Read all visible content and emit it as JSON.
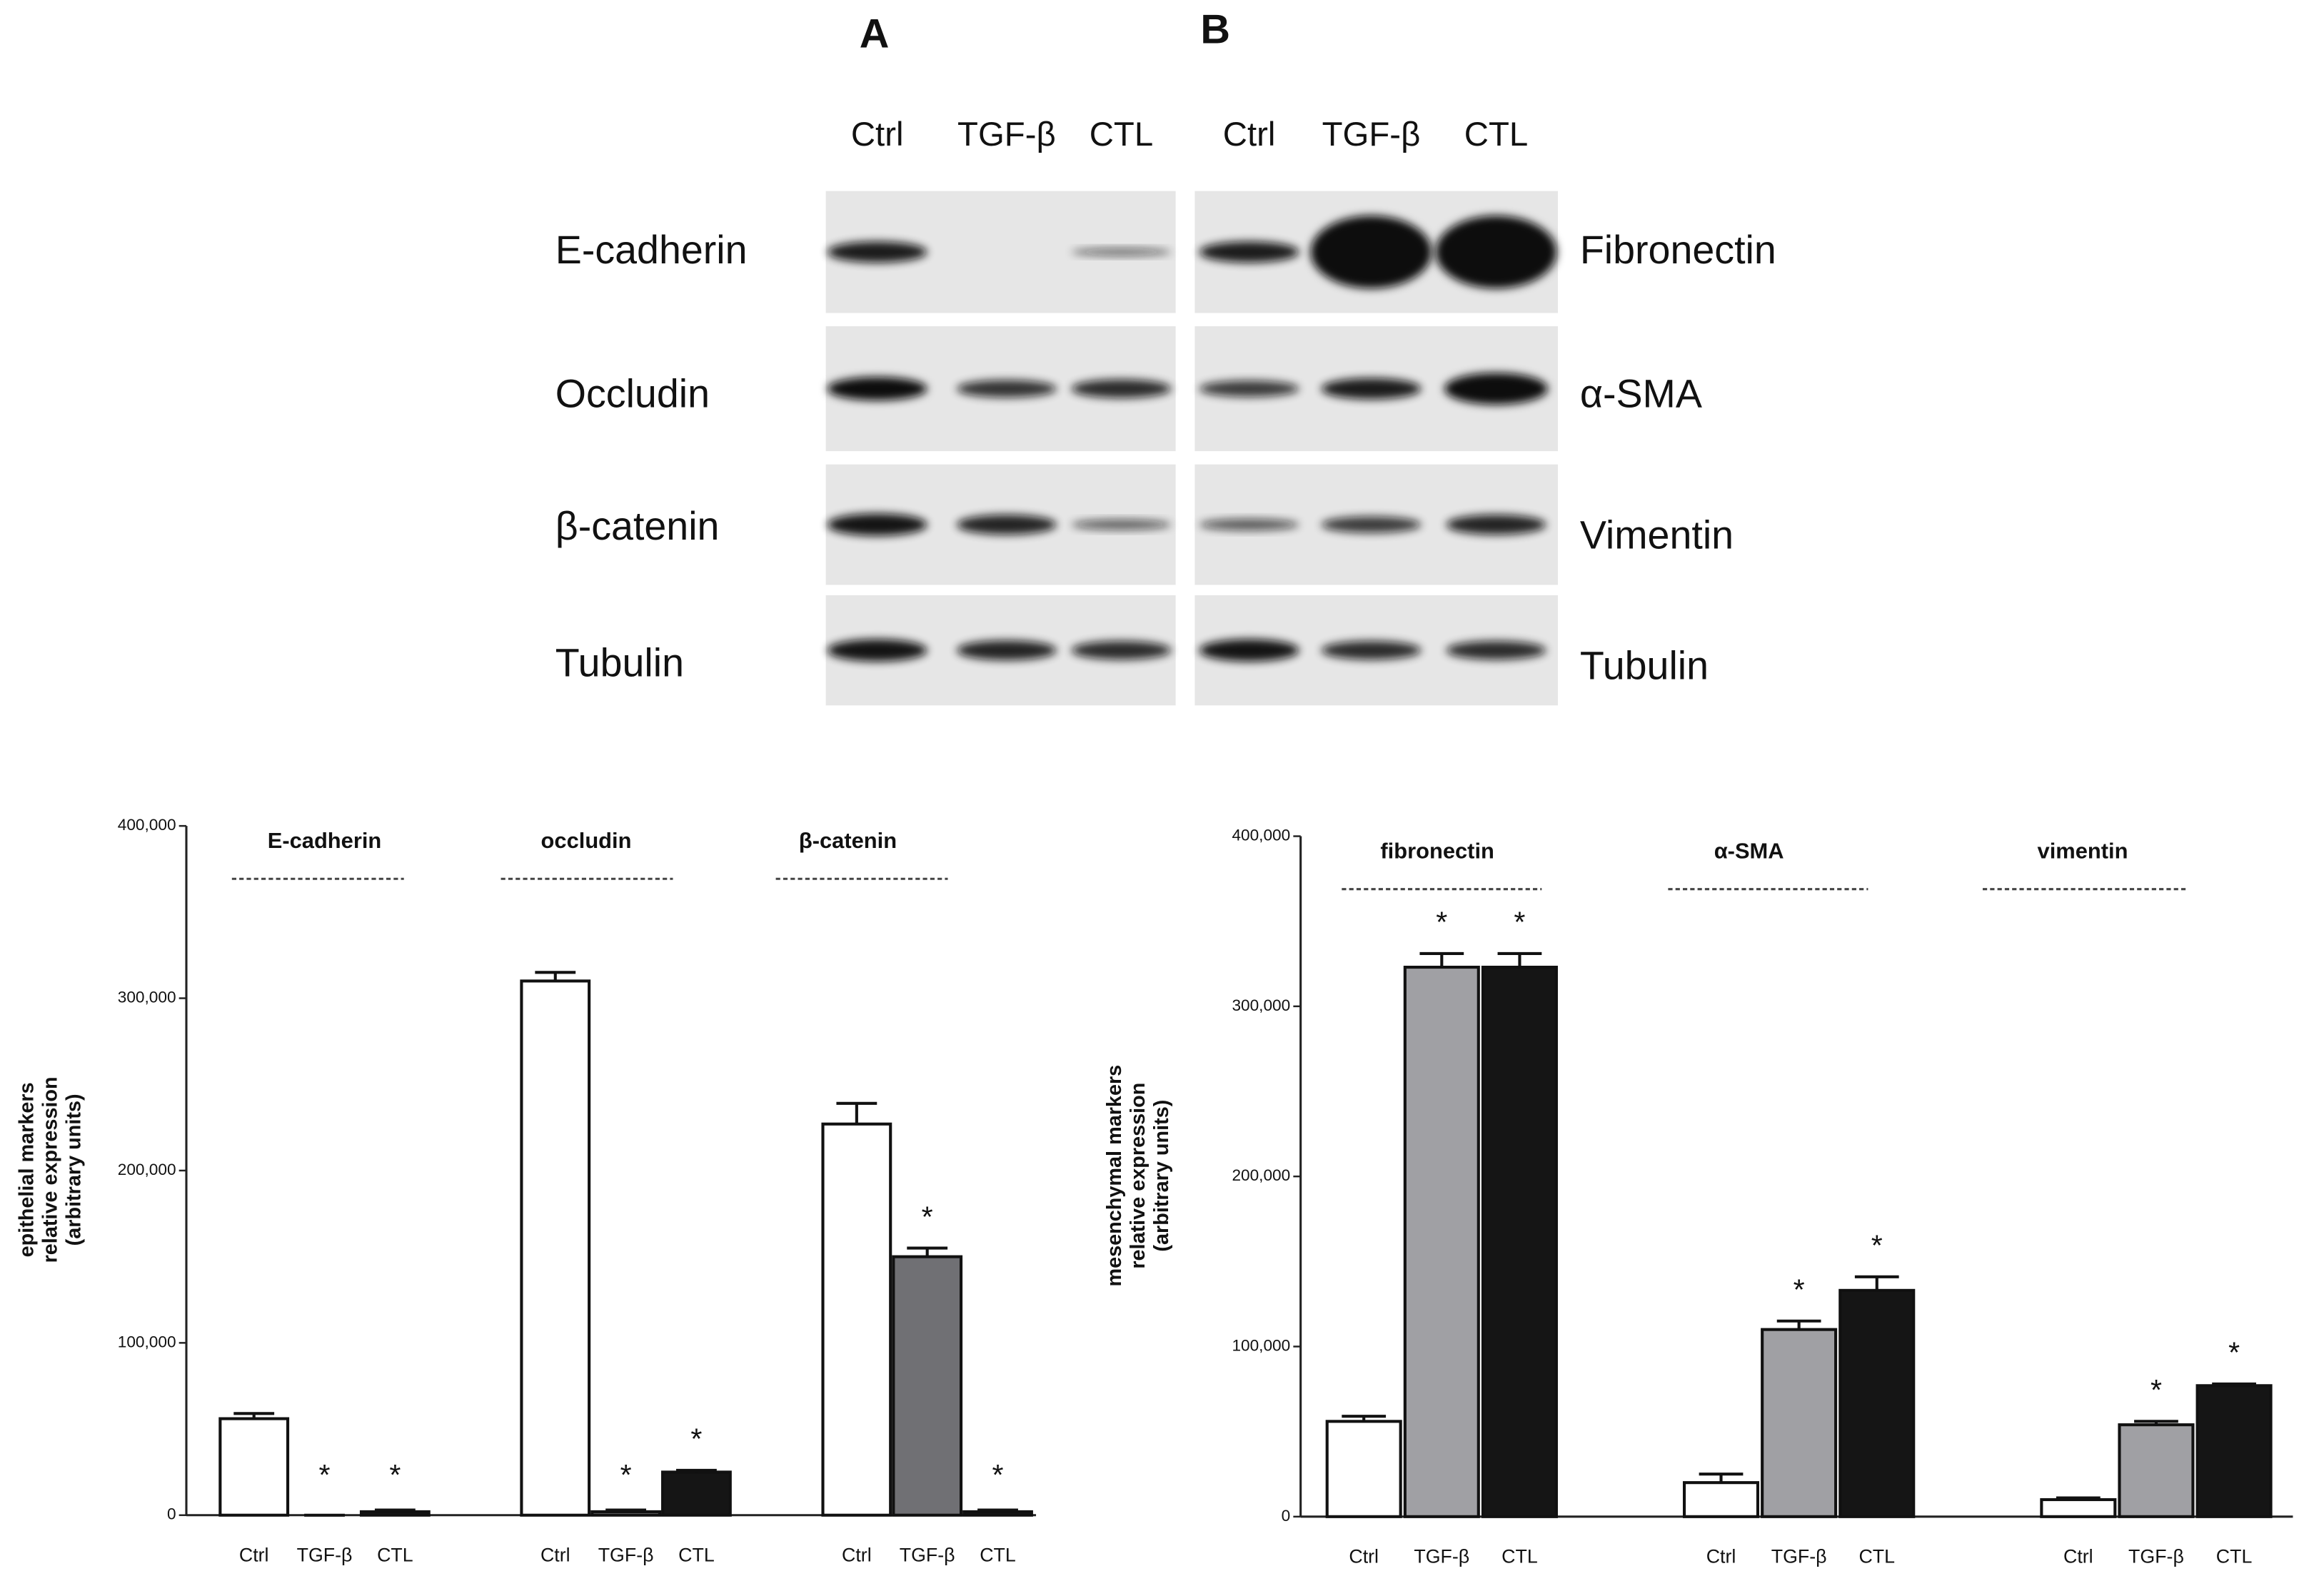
{
  "panels": {
    "A": {
      "letter": "A",
      "lanes": [
        "Ctrl",
        "TGF-β",
        "CTL"
      ],
      "proteins": [
        "E-cadherin",
        "Occludin",
        "β-catenin",
        "Tubulin"
      ]
    },
    "B": {
      "letter": "B",
      "lanes": [
        "Ctrl",
        "TGF-β",
        "CTL"
      ],
      "proteins": [
        "Fibronectin",
        "α-SMA",
        "Vimentin",
        "Tubulin"
      ]
    }
  },
  "chart_data": [
    {
      "type": "bar",
      "ylabel": [
        "epithelial markers",
        "relative expression",
        "(arbitrary units)"
      ],
      "categories": [
        "E-cadherin",
        "occludin",
        "β-catenin"
      ],
      "series": [
        {
          "name": "Ctrl",
          "color": "#ffffff",
          "values": [
            56000,
            310000,
            227000
          ],
          "errors": [
            3000,
            5000,
            12000
          ]
        },
        {
          "name": "TGF-β",
          "color": "#707074",
          "values": [
            0,
            2000,
            150000
          ],
          "errors": [
            0,
            1000,
            5000
          ],
          "significance": [
            "*",
            "*",
            "*"
          ]
        },
        {
          "name": "CTL",
          "color": "#151515",
          "values": [
            2000,
            25000,
            2000
          ],
          "errors": [
            1000,
            1000,
            1000
          ],
          "significance": [
            "*",
            "*",
            "*"
          ]
        }
      ],
      "ylim": [
        0,
        400000
      ],
      "yticks": [
        0,
        {
          "value": 100000,
          "label": "100,000"
        },
        {
          "value": 200000,
          "label": "200,000"
        },
        {
          "value": 300000,
          "label": "300,000"
        },
        {
          "value": 400000,
          "label": "400,000"
        }
      ]
    },
    {
      "type": "bar",
      "ylabel": [
        "mesenchymal markers",
        "relative expression",
        "(arbitrary units)"
      ],
      "categories": [
        "fibronectin",
        "α-SMA",
        "vimentin"
      ],
      "series": [
        {
          "name": "Ctrl",
          "color": "#ffffff",
          "values": [
            56000,
            20000,
            10000
          ],
          "errors": [
            3000,
            5000,
            1000
          ]
        },
        {
          "name": "TGF-β",
          "color": "#a0a0a4",
          "values": [
            323000,
            110000,
            54000
          ],
          "errors": [
            8000,
            5000,
            2000
          ],
          "significance": [
            "*",
            "*",
            "*"
          ]
        },
        {
          "name": "CTL",
          "color": "#151515",
          "values": [
            323000,
            133000,
            77000
          ],
          "errors": [
            8000,
            8000,
            1000
          ],
          "significance": [
            "*",
            "*",
            "*"
          ]
        }
      ],
      "ylim": [
        0,
        400000
      ],
      "yticks": [
        0,
        {
          "value": 100000,
          "label": "100,000"
        },
        {
          "value": 200000,
          "label": "200,000"
        },
        {
          "value": 300000,
          "label": "300,000"
        },
        {
          "value": 400000,
          "label": "400,000"
        }
      ]
    }
  ]
}
